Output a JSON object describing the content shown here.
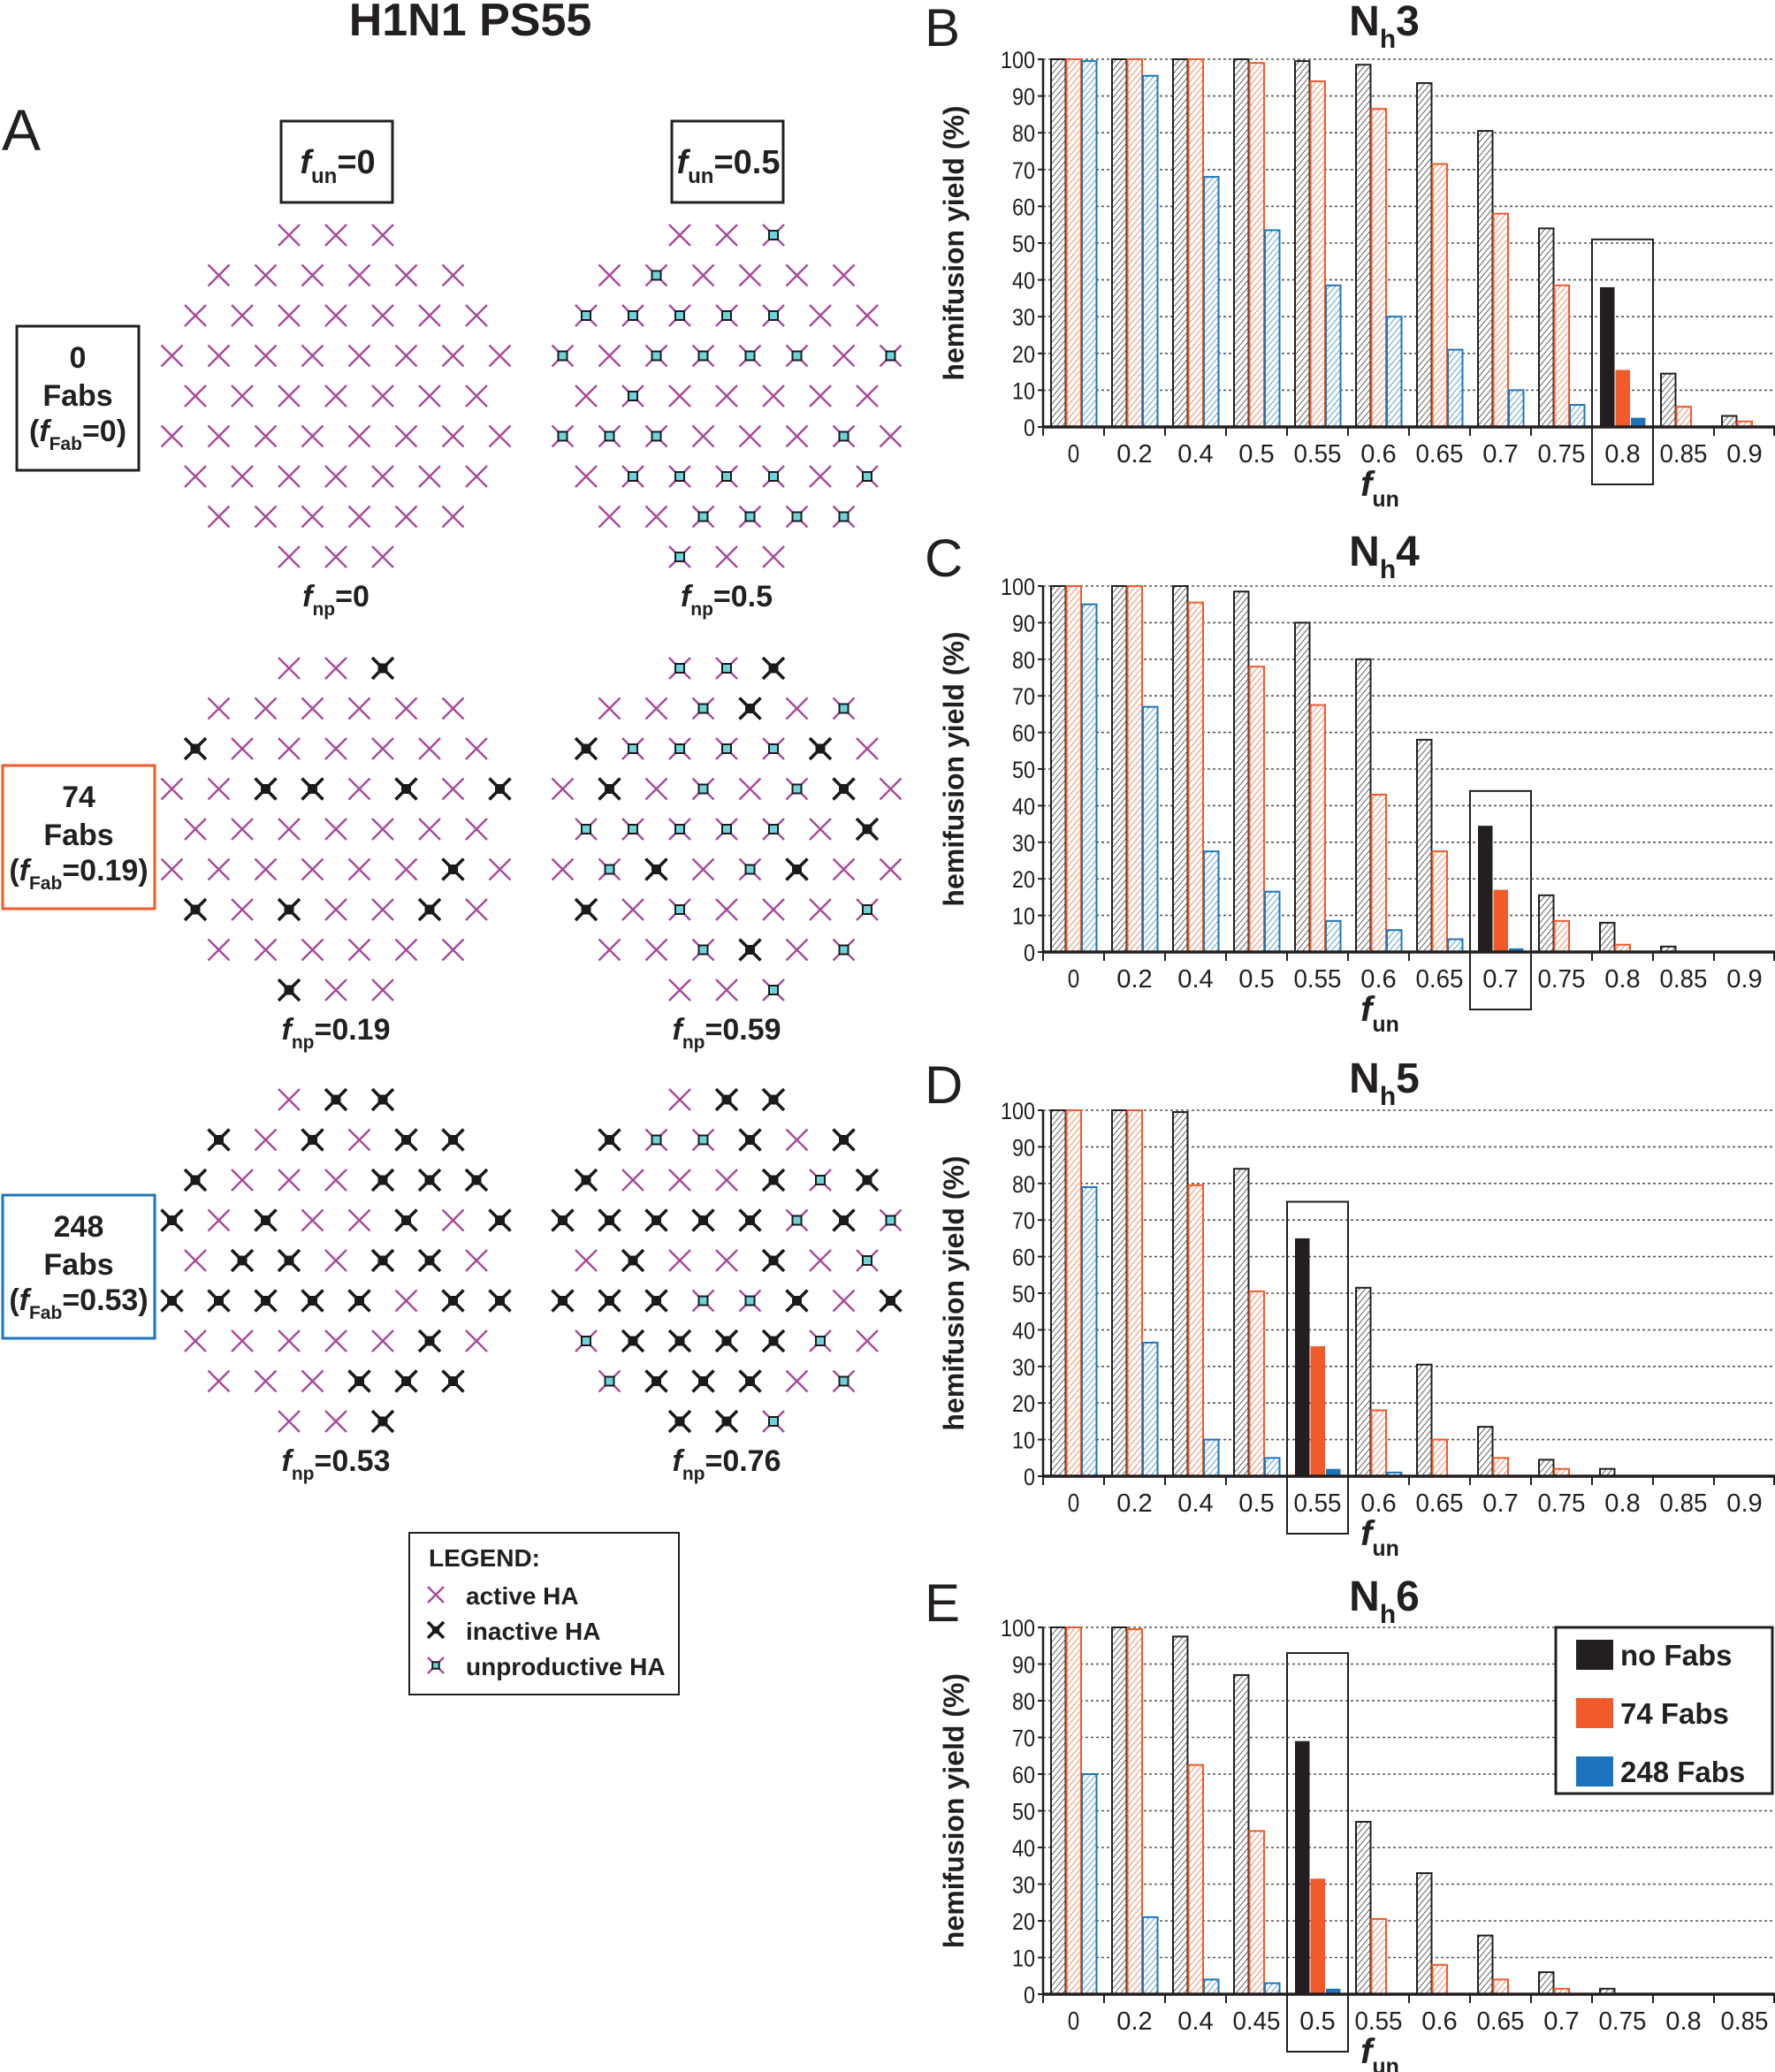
{
  "title": "H1N1 PS55",
  "colors": {
    "no_fabs": "#231f20",
    "fabs_74": "#f15a29",
    "fabs_248": "#1c75bc",
    "active_ha": "#a8489c",
    "unproductive_core": "#6fd3dc",
    "grid": "#555555"
  },
  "panel_a": {
    "letter": "A",
    "columns": [
      {
        "var": "f",
        "sub": "un",
        "val": "=0"
      },
      {
        "var": "f",
        "sub": "un",
        "val": "=0.5"
      }
    ],
    "rows": [
      {
        "count": "0",
        "unit": "Fabs",
        "prefix": "(",
        "var": "f",
        "sub": "Fab",
        "val": "=0)",
        "border": "#231f20"
      },
      {
        "count": "74",
        "unit": "Fabs",
        "prefix": "(",
        "var": "f",
        "sub": "Fab",
        "val": "=0.19)",
        "border": "#f15a29"
      },
      {
        "count": "248",
        "unit": "Fabs",
        "prefix": "(",
        "var": "f",
        "sub": "Fab",
        "val": "=0.53)",
        "border": "#1c75bc"
      }
    ],
    "lattices": [
      {
        "row": 0,
        "col": 0,
        "fnp": {
          "var": "f",
          "sub": "np",
          "val": "=0"
        },
        "sites": [
          "aaa",
          "aaaaaa",
          "aaaaaaa",
          "aaaaaaaa",
          "aaaaaaa",
          "aaaaaaaa",
          "aaaaaaa",
          "aaaaaa",
          "aaa"
        ]
      },
      {
        "row": 0,
        "col": 1,
        "fnp": {
          "var": "f",
          "sub": "np",
          "val": "=0.5"
        },
        "sites": [
          "aau",
          "auaaaa",
          "uuuuuaa",
          "uauuuuau",
          "auaaaaa",
          "uuuaaaua",
          "auuuuau",
          "aauuuu",
          "uaa"
        ]
      },
      {
        "row": 1,
        "col": 0,
        "fnp": {
          "var": "f",
          "sub": "np",
          "val": "=0.19"
        },
        "sites": [
          "aai",
          "aaaaaa",
          "iaaaaaa",
          "aaiiaiai",
          "aaaaaaa",
          "aaaaaaia",
          "iaiaaia",
          "aaaaaa",
          "iaa"
        ]
      },
      {
        "row": 1,
        "col": 1,
        "fnp": {
          "var": "f",
          "sub": "np",
          "val": "=0.59"
        },
        "sites": [
          "uui",
          "aauiau",
          "iuuuuia",
          "aiauauia",
          "uuuuuai",
          "auiauiaa",
          "iauaaau",
          "aauiau",
          "aau"
        ]
      },
      {
        "row": 2,
        "col": 0,
        "fnp": {
          "var": "f",
          "sub": "np",
          "val": "=0.53"
        },
        "sites": [
          "aii",
          "iaiaii",
          "iaaaiii",
          "iaiaaiai",
          "aiiaiia",
          "iiiiiaii",
          "aaaaaia",
          "aaaiii",
          "aai"
        ]
      },
      {
        "row": 2,
        "col": 1,
        "fnp": {
          "var": "f",
          "sub": "np",
          "val": "=0.76"
        },
        "sites": [
          "aii",
          "iuuiai",
          "iaaaiui",
          "iiiiiuiu",
          "aiaaiau",
          "iiiuuiai",
          "uiiiiua",
          "uiiiau",
          "iiu"
        ]
      }
    ],
    "legend": {
      "title": "LEGEND:",
      "items": [
        {
          "type": "a",
          "label": "active HA",
          "icon": "active-ha-cross"
        },
        {
          "type": "i",
          "label": "inactive HA",
          "icon": "inactive-ha-cross"
        },
        {
          "type": "u",
          "label": "unproductive HA",
          "icon": "unproductive-ha-cross"
        }
      ]
    }
  },
  "chart_data": [
    {
      "type": "bar",
      "letter": "B",
      "title": {
        "main": "N",
        "sub": "h",
        "val": "3"
      },
      "ylabel": "hemifusion yield (%)",
      "xlabel": {
        "var": "f",
        "sub": "un"
      },
      "ylim": [
        0,
        100
      ],
      "yticks": [
        0,
        10,
        20,
        30,
        40,
        50,
        60,
        70,
        80,
        90,
        100
      ],
      "grid": true,
      "categories": [
        "0",
        "0.2",
        "0.4",
        "0.5",
        "0.55",
        "0.6",
        "0.65",
        "0.7",
        "0.75",
        "0.8",
        "0.85",
        "0.9"
      ],
      "highlight": "0.8",
      "highlight_box_top": 51,
      "series": [
        {
          "name": "no Fabs",
          "values": [
            100,
            100,
            100,
            100,
            99.5,
            98.5,
            93.5,
            80.5,
            54,
            38,
            14.5,
            3
          ]
        },
        {
          "name": "74 Fabs",
          "values": [
            100,
            100,
            100,
            99,
            94,
            86.5,
            71.5,
            58,
            38.5,
            15.5,
            5.5,
            1.5
          ]
        },
        {
          "name": "248 Fabs",
          "values": [
            99.5,
            95.5,
            68,
            53.5,
            38.5,
            30,
            21,
            10,
            6,
            2.5,
            0,
            0
          ]
        }
      ]
    },
    {
      "type": "bar",
      "letter": "C",
      "title": {
        "main": "N",
        "sub": "h",
        "val": "4"
      },
      "ylabel": "hemifusion yield (%)",
      "xlabel": {
        "var": "f",
        "sub": "un"
      },
      "ylim": [
        0,
        100
      ],
      "yticks": [
        0,
        10,
        20,
        30,
        40,
        50,
        60,
        70,
        80,
        90,
        100
      ],
      "grid": true,
      "categories": [
        "0",
        "0.2",
        "0.4",
        "0.5",
        "0.55",
        "0.6",
        "0.65",
        "0.7",
        "0.75",
        "0.8",
        "0.85",
        "0.9"
      ],
      "highlight": "0.7",
      "highlight_box_top": 44,
      "series": [
        {
          "name": "no Fabs",
          "values": [
            100,
            100,
            100,
            98.5,
            90,
            80,
            58,
            34.5,
            15.5,
            8,
            1.5,
            0
          ]
        },
        {
          "name": "74 Fabs",
          "values": [
            100,
            100,
            95.5,
            78,
            67.5,
            43,
            27.5,
            17,
            8.5,
            2,
            0,
            0
          ]
        },
        {
          "name": "248 Fabs",
          "values": [
            95,
            67,
            27.5,
            16.5,
            8.5,
            6,
            3.5,
            1,
            0,
            0,
            0,
            0
          ]
        }
      ]
    },
    {
      "type": "bar",
      "letter": "D",
      "title": {
        "main": "N",
        "sub": "h",
        "val": "5"
      },
      "ylabel": "hemifusion yield (%)",
      "xlabel": {
        "var": "f",
        "sub": "un"
      },
      "ylim": [
        0,
        100
      ],
      "yticks": [
        0,
        10,
        20,
        30,
        40,
        50,
        60,
        70,
        80,
        90,
        100
      ],
      "grid": true,
      "categories": [
        "0",
        "0.2",
        "0.4",
        "0.5",
        "0.55",
        "0.6",
        "0.65",
        "0.7",
        "0.75",
        "0.8",
        "0.85",
        "0.9"
      ],
      "highlight": "0.55",
      "highlight_box_top": 75,
      "series": [
        {
          "name": "no Fabs",
          "values": [
            100,
            100,
            99.5,
            84,
            65,
            51.5,
            30.5,
            13.5,
            4.5,
            2,
            0,
            0
          ]
        },
        {
          "name": "74 Fabs",
          "values": [
            100,
            100,
            79.5,
            50.5,
            35.5,
            18,
            10,
            5,
            2,
            0,
            0,
            0
          ]
        },
        {
          "name": "248 Fabs",
          "values": [
            79,
            36.5,
            10,
            5,
            2,
            1,
            0,
            0,
            0,
            0,
            0,
            0
          ]
        }
      ]
    },
    {
      "type": "bar",
      "letter": "E",
      "title": {
        "main": "N",
        "sub": "h",
        "val": "6"
      },
      "ylabel": "hemifusion yield (%)",
      "xlabel": {
        "var": "f",
        "sub": "un"
      },
      "ylim": [
        0,
        100
      ],
      "yticks": [
        0,
        10,
        20,
        30,
        40,
        50,
        60,
        70,
        80,
        90,
        100
      ],
      "grid": true,
      "categories": [
        "0",
        "0.2",
        "0.4",
        "0.45",
        "0.5",
        "0.55",
        "0.6",
        "0.65",
        "0.7",
        "0.75",
        "0.8",
        "0.85"
      ],
      "highlight": "0.5",
      "highlight_box_top": 93,
      "legend": {
        "position": "top-right",
        "entries": [
          "no Fabs",
          "74 Fabs",
          "248 Fabs"
        ]
      },
      "series": [
        {
          "name": "no Fabs",
          "values": [
            100,
            100,
            97.5,
            87,
            69,
            47,
            33,
            16,
            6,
            1.5,
            0,
            0
          ]
        },
        {
          "name": "74 Fabs",
          "values": [
            100,
            99.5,
            62.5,
            44.5,
            31.5,
            20.5,
            8,
            4,
            1.5,
            0,
            0,
            0
          ]
        },
        {
          "name": "248 Fabs",
          "values": [
            60,
            21,
            4,
            3,
            1.5,
            0,
            0,
            0,
            0,
            0,
            0,
            0
          ]
        }
      ]
    }
  ]
}
